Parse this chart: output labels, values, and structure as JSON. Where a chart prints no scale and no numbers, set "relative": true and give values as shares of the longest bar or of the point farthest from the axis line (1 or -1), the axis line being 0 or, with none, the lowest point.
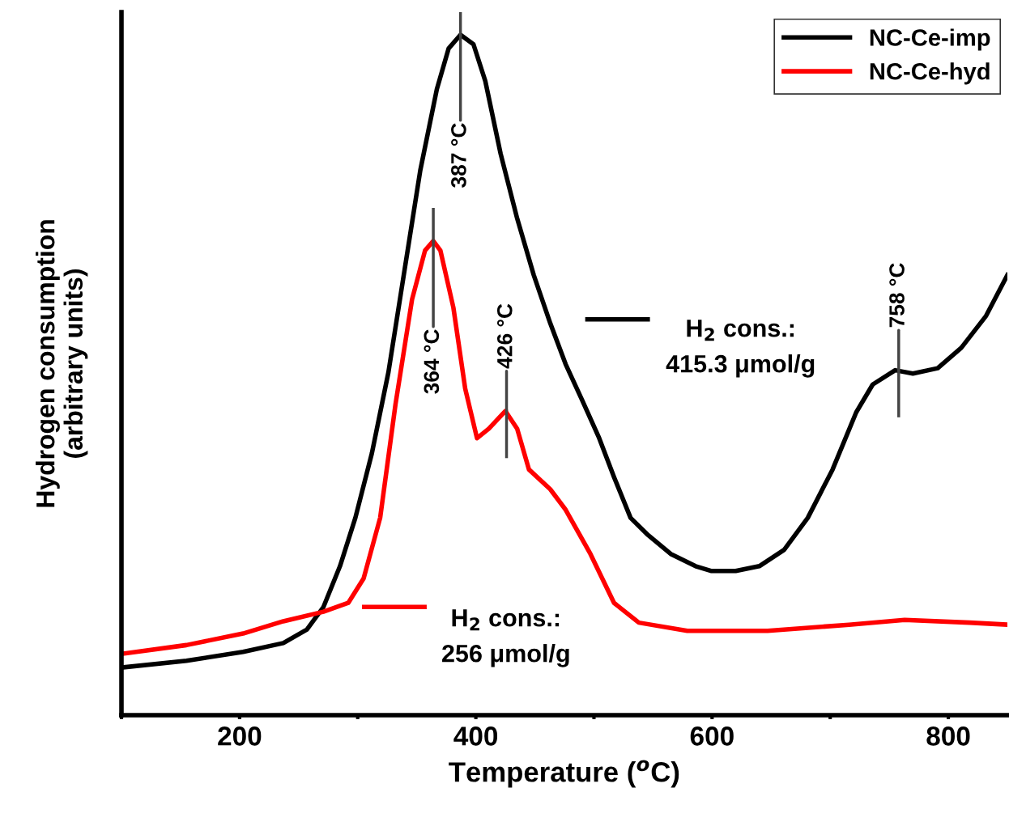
{
  "chart_data": {
    "type": "line",
    "relative": true,
    "xlabel": "Temperature ($^{o}$C)",
    "ylabel": "Hydrogen consumption\n(arbitrary units)",
    "xlim": [
      100,
      850
    ],
    "xticks": [
      {
        "value": 100,
        "label": null
      },
      200,
      {
        "value": 300,
        "label": null
      },
      400,
      {
        "value": 500,
        "label": null
      },
      600,
      {
        "value": 700,
        "label": null
      },
      800
    ],
    "legend": "top right",
    "grid": false,
    "marker": "none",
    "line_style": "solid",
    "series": [
      {
        "name": "NC-Ce-imp",
        "color": "#000000",
        "x": [
          100,
          155,
          203,
          237,
          257,
          271,
          285,
          298,
          312,
          326,
          339,
          353,
          367,
          377,
          387,
          398,
          408,
          421,
          435,
          449,
          463,
          476,
          490,
          504,
          517,
          531,
          545,
          565,
          586,
          599,
          620,
          640,
          661,
          681,
          702,
          722,
          736,
          755,
          770,
          791,
          811,
          832,
          850
        ],
        "values": [
          0.07,
          0.08,
          0.093,
          0.106,
          0.126,
          0.159,
          0.219,
          0.29,
          0.385,
          0.504,
          0.647,
          0.801,
          0.92,
          0.98,
          1.0,
          0.986,
          0.932,
          0.825,
          0.73,
          0.647,
          0.576,
          0.516,
          0.463,
          0.409,
          0.35,
          0.29,
          0.266,
          0.237,
          0.219,
          0.212,
          0.212,
          0.219,
          0.243,
          0.29,
          0.361,
          0.445,
          0.486,
          0.507,
          0.502,
          0.51,
          0.54,
          0.587,
          0.647
        ]
      },
      {
        "name": "NC-Ce-hyd",
        "color": "#ff0000",
        "x": [
          100,
          155,
          203,
          237,
          271,
          292,
          305,
          319,
          332,
          346,
          357,
          364,
          370,
          381,
          391,
          401,
          411,
          425,
          435,
          445,
          463,
          476,
          497,
          517,
          538,
          579,
          647,
          716,
          763,
          818,
          850
        ],
        "values": [
          0.09,
          0.103,
          0.12,
          0.138,
          0.152,
          0.165,
          0.201,
          0.29,
          0.457,
          0.611,
          0.683,
          0.697,
          0.683,
          0.599,
          0.48,
          0.407,
          0.421,
          0.447,
          0.421,
          0.361,
          0.332,
          0.302,
          0.237,
          0.165,
          0.136,
          0.124,
          0.124,
          0.133,
          0.14,
          0.136,
          0.133
        ]
      }
    ],
    "annotations": [
      {
        "text": "387 °C",
        "x": 387,
        "y": 1.0
      },
      {
        "text": "364 °C",
        "x": 364,
        "y": 0.697
      },
      {
        "text": "426 °C",
        "x": 426,
        "y": 0.447
      },
      {
        "text": "758 °C",
        "x": 758,
        "y": 0.507
      },
      "H$_{2}$ cons.:\n415.3 μmol/g",
      "H$_{2}$ cons.:\n256 μmol/g"
    ]
  }
}
